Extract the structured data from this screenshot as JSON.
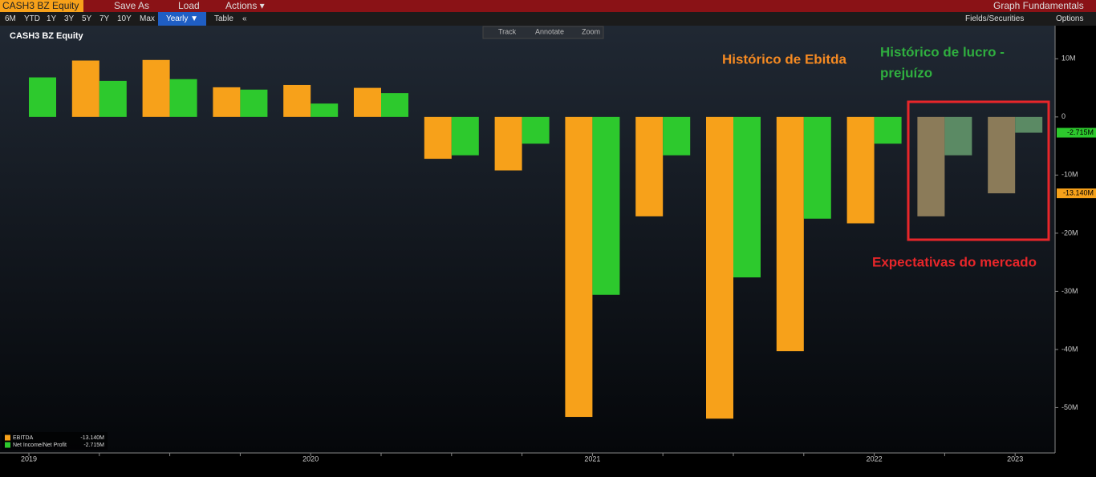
{
  "ui": {
    "security": "CASH3 BZ Equity",
    "menu": [
      "Save As",
      "Load",
      "Actions ▾"
    ],
    "app": "Graph Fundamentals",
    "ranges": [
      "6M",
      "YTD",
      "1Y",
      "3Y",
      "5Y",
      "7Y",
      "10Y",
      "Max"
    ],
    "period": "Yearly ▼",
    "table": "Table",
    "collapse": "«",
    "fields": "Fields/Securities",
    "options": "Options",
    "tools": [
      "Track",
      "Annotate",
      "Zoom"
    ]
  },
  "chart_data": {
    "type": "bar",
    "title": "CASH3 BZ Equity",
    "categories": [
      "2019",
      null,
      null,
      null,
      "2020",
      null,
      null,
      null,
      "2021",
      null,
      null,
      null,
      "2022",
      null,
      "2023"
    ],
    "series": [
      {
        "name": "EBITDA",
        "color": "#f7a11a",
        "last_label": "-13.140M",
        "colors": [
          "#f7a11a",
          "#f7a11a",
          "#f7a11a",
          "#f7a11a",
          "#f7a11a",
          "#f7a11a",
          "#f7a11a",
          "#f7a11a",
          "#f7a11a",
          "#f7a11a",
          "#f7a11a",
          "#f7a11a",
          "#f7a11a",
          "#8b7b59",
          "#8b7b59"
        ],
        "values": [
          null,
          9.7,
          9.8,
          5.1,
          5.5,
          5.0,
          -7.2,
          -9.2,
          -51.6,
          -17.1,
          -51.9,
          -40.3,
          -18.3,
          -17.1,
          -13.14
        ]
      },
      {
        "name": "Net Income/Net Profit",
        "color": "#2dc92d",
        "last_label": "-2.715M",
        "colors": [
          "#2dc92d",
          "#2dc92d",
          "#2dc92d",
          "#2dc92d",
          "#2dc92d",
          "#2dc92d",
          "#2dc92d",
          "#2dc92d",
          "#2dc92d",
          "#2dc92d",
          "#2dc92d",
          "#2dc92d",
          "#2dc92d",
          "#5b8a64",
          "#5b8a64"
        ],
        "values": [
          6.8,
          6.2,
          6.5,
          4.7,
          2.3,
          4.1,
          -6.6,
          -4.6,
          -30.6,
          -6.6,
          -27.6,
          -17.5,
          -4.6,
          -6.6,
          -2.715
        ]
      }
    ],
    "ylim": [
      -57.8,
      15.7
    ],
    "yticks": [
      {
        "value": 10,
        "label": "10M"
      },
      0,
      {
        "value": -10,
        "label": "-10M"
      },
      {
        "value": -20,
        "label": "-20M"
      },
      {
        "value": -30,
        "label": "-30M"
      },
      {
        "value": -40,
        "label": "-40M"
      },
      {
        "value": -50,
        "label": "-50M"
      }
    ],
    "legend_position": "bottom-left",
    "annotations": [
      {
        "lines": [
          "Histórico de Ebitda"
        ],
        "color": "#f58a22"
      },
      {
        "lines": [
          "Histórico de lucro -",
          "prejuízo"
        ],
        "color": "#2fae3f"
      },
      {
        "lines": [
          "Expectativas do mercado"
        ],
        "color": "#e8262a"
      }
    ]
  }
}
